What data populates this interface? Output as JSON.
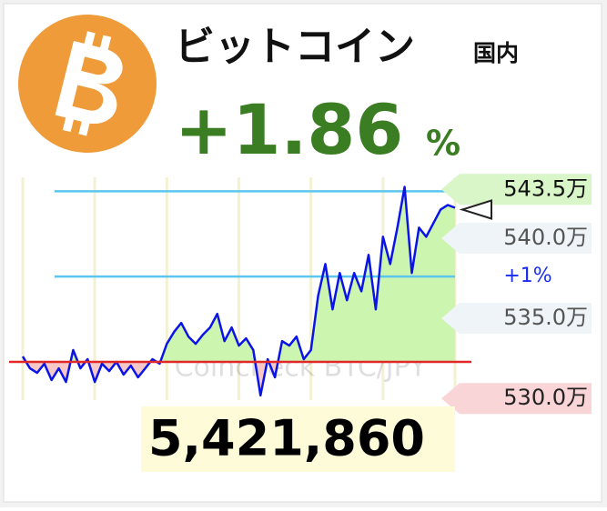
{
  "header": {
    "title": "ビットコイン",
    "region": "国内",
    "change": "+1.86",
    "change_unit": "%"
  },
  "chart_data": {
    "type": "line",
    "watermark": "Coincheck BTC/JPY",
    "color": "#0a14e6",
    "values": [
      532.62,
      531.88,
      531.6,
      532.17,
      531.15,
      531.88,
      531.03,
      533.02,
      531.88,
      532.45,
      531.03,
      532.17,
      531.71,
      532.28,
      531.49,
      532.05,
      531.32,
      531.88,
      532.45,
      532.17,
      533.41,
      534.15,
      534.71,
      533.86,
      533.41,
      533.98,
      534.43,
      535.28,
      533.58,
      534.43,
      533.3,
      533.75,
      533.02,
      530.19,
      532.45,
      531.32,
      533.58,
      533.3,
      533.86,
      532.45,
      533.02,
      536.41,
      538.39,
      535.56,
      537.83,
      536.13,
      537.83,
      536.69,
      538.96,
      535.56,
      540.09,
      538.39,
      540.66,
      543.2,
      537.83,
      540.66,
      540.09,
      540.94,
      541.79,
      542.07,
      541.9
    ],
    "ylim": [
      529.9,
      543.8
    ],
    "yticks": [
      {
        "value": 530,
        "label": "530.0万"
      },
      {
        "value": 535,
        "label": "535.0万"
      },
      {
        "value": 540,
        "label": "540.0万"
      }
    ],
    "price_marker": {
      "value": 543.5,
      "label": "543.5万"
    },
    "baseline": {
      "value": 532.28,
      "color": "#e02828"
    },
    "percent_lines": {
      "color": "#5cc6ee",
      "lines": [
        {
          "value": 537.61,
          "label": "+1%"
        },
        {
          "value": 542.93
        }
      ]
    }
  },
  "price": "5,421,860"
}
